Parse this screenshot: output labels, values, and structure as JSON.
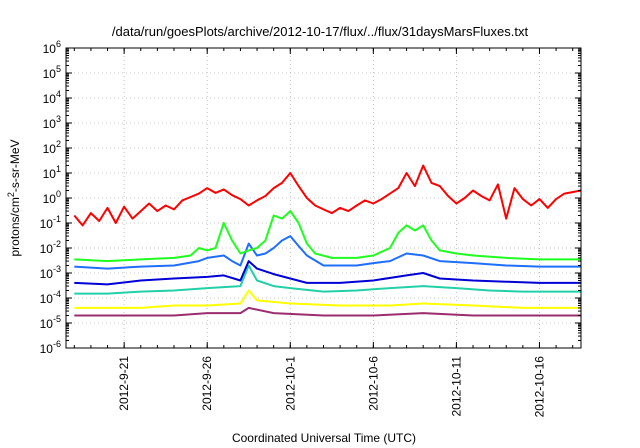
{
  "chart_data": {
    "type": "line",
    "title": "/data/run/goesPlots/archive/2012-10-17/flux/../flux/31daysMarsFluxes.txt",
    "xlabel": "Coordinated Universal Time (UTC)",
    "ylabel_parts": [
      "protons/cm",
      "2",
      "-s-sr-MeV"
    ],
    "x_scale": "time",
    "xlim": [
      "2012-09-17T12:00",
      "2012-10-18T12:00"
    ],
    "y_scale": "log",
    "ylim": [
      1e-06,
      1000000.0
    ],
    "grid": true,
    "x_ticks": [
      {
        "value": "2012-09-21",
        "label": "2012-9-21"
      },
      {
        "value": "2012-09-26",
        "label": "2012-9-26"
      },
      {
        "value": "2012-10-01",
        "label": "2012-10-1"
      },
      {
        "value": "2012-10-06",
        "label": "2012-10-6"
      },
      {
        "value": "2012-10-11",
        "label": "2012-10-11"
      },
      {
        "value": "2012-10-16",
        "label": "2012-10-16"
      }
    ],
    "y_ticks": [
      {
        "value": 1e-06,
        "base": "10",
        "exp": "-6"
      },
      {
        "value": 1e-05,
        "base": "10",
        "exp": "-5"
      },
      {
        "value": 0.0001,
        "base": "10",
        "exp": "-4"
      },
      {
        "value": 0.001,
        "base": "10",
        "exp": "-3"
      },
      {
        "value": 0.01,
        "base": "10",
        "exp": "-2"
      },
      {
        "value": 0.1,
        "base": "10",
        "exp": "-1"
      },
      {
        "value": 1,
        "base": "10",
        "exp": "0"
      },
      {
        "value": 10,
        "base": "10",
        "exp": "1"
      },
      {
        "value": 100,
        "base": "10",
        "exp": "2"
      },
      {
        "value": 1000,
        "base": "10",
        "exp": "3"
      },
      {
        "value": 10000,
        "base": "10",
        "exp": "4"
      },
      {
        "value": 100000,
        "base": "10",
        "exp": "5"
      },
      {
        "value": 1000000,
        "base": "10",
        "exp": "6"
      }
    ],
    "series": [
      {
        "color": "#ff0000",
        "points": [
          [
            "2012-09-18T00:00",
            0.2
          ],
          [
            "2012-09-18T12:00",
            0.08
          ],
          [
            "2012-09-19T00:00",
            0.25
          ],
          [
            "2012-09-19T12:00",
            0.12
          ],
          [
            "2012-09-20T00:00",
            0.4
          ],
          [
            "2012-09-20T12:00",
            0.1
          ],
          [
            "2012-09-21T00:00",
            0.45
          ],
          [
            "2012-09-21T12:00",
            0.15
          ],
          [
            "2012-09-22T00:00",
            0.3
          ],
          [
            "2012-09-22T12:00",
            0.6
          ],
          [
            "2012-09-23T00:00",
            0.3
          ],
          [
            "2012-09-23T12:00",
            0.5
          ],
          [
            "2012-09-24T00:00",
            0.35
          ],
          [
            "2012-09-24T12:00",
            0.8
          ],
          [
            "2012-09-25T00:00",
            1.1
          ],
          [
            "2012-09-25T12:00",
            1.5
          ],
          [
            "2012-09-26T00:00",
            2.5
          ],
          [
            "2012-09-26T12:00",
            1.6
          ],
          [
            "2012-09-27T00:00",
            2.2
          ],
          [
            "2012-09-27T12:00",
            1.3
          ],
          [
            "2012-09-28T00:00",
            0.9
          ],
          [
            "2012-09-28T12:00",
            0.5
          ],
          [
            "2012-09-29T00:00",
            0.8
          ],
          [
            "2012-09-29T12:00",
            1.2
          ],
          [
            "2012-09-30T00:00",
            2.5
          ],
          [
            "2012-09-30T12:00",
            4
          ],
          [
            "2012-10-01T00:00",
            10
          ],
          [
            "2012-10-01T12:00",
            3
          ],
          [
            "2012-10-02T00:00",
            1
          ],
          [
            "2012-10-02T12:00",
            0.5
          ],
          [
            "2012-10-03T00:00",
            0.35
          ],
          [
            "2012-10-03T12:00",
            0.25
          ],
          [
            "2012-10-04T00:00",
            0.4
          ],
          [
            "2012-10-04T12:00",
            0.3
          ],
          [
            "2012-10-05T00:00",
            0.5
          ],
          [
            "2012-10-05T12:00",
            0.8
          ],
          [
            "2012-10-06T00:00",
            0.6
          ],
          [
            "2012-10-06T12:00",
            0.9
          ],
          [
            "2012-10-07T00:00",
            1.5
          ],
          [
            "2012-10-07T12:00",
            2.5
          ],
          [
            "2012-10-08T00:00",
            10
          ],
          [
            "2012-10-08T12:00",
            3
          ],
          [
            "2012-10-09T00:00",
            20
          ],
          [
            "2012-10-09T12:00",
            4
          ],
          [
            "2012-10-10T00:00",
            3
          ],
          [
            "2012-10-10T12:00",
            1.2
          ],
          [
            "2012-10-11T00:00",
            0.6
          ],
          [
            "2012-10-11T12:00",
            1
          ],
          [
            "2012-10-12T00:00",
            2
          ],
          [
            "2012-10-12T12:00",
            1.2
          ],
          [
            "2012-10-13T00:00",
            0.8
          ],
          [
            "2012-10-13T12:00",
            3.5
          ],
          [
            "2012-10-14T00:00",
            0.15
          ],
          [
            "2012-10-14T12:00",
            2.5
          ],
          [
            "2012-10-15T00:00",
            0.9
          ],
          [
            "2012-10-15T12:00",
            0.5
          ],
          [
            "2012-10-16T00:00",
            0.9
          ],
          [
            "2012-10-16T12:00",
            0.4
          ],
          [
            "2012-10-17T00:00",
            0.9
          ],
          [
            "2012-10-17T12:00",
            1.5
          ],
          [
            "2012-10-18T12:00",
            2
          ]
        ]
      },
      {
        "color": "#1fff1f",
        "points": [
          [
            "2012-09-18T00:00",
            0.0035
          ],
          [
            "2012-09-20T00:00",
            0.003
          ],
          [
            "2012-09-22T00:00",
            0.0035
          ],
          [
            "2012-09-24T00:00",
            0.004
          ],
          [
            "2012-09-25T00:00",
            0.005
          ],
          [
            "2012-09-25T12:00",
            0.01
          ],
          [
            "2012-09-26T00:00",
            0.008
          ],
          [
            "2012-09-26T12:00",
            0.01
          ],
          [
            "2012-09-27T00:00",
            0.1
          ],
          [
            "2012-09-27T12:00",
            0.02
          ],
          [
            "2012-09-28T00:00",
            0.006
          ],
          [
            "2012-09-28T12:00",
            0.008
          ],
          [
            "2012-09-29T00:00",
            0.01
          ],
          [
            "2012-09-29T12:00",
            0.02
          ],
          [
            "2012-09-30T00:00",
            0.2
          ],
          [
            "2012-09-30T12:00",
            0.15
          ],
          [
            "2012-10-01T00:00",
            0.3
          ],
          [
            "2012-10-01T12:00",
            0.1
          ],
          [
            "2012-10-02T00:00",
            0.015
          ],
          [
            "2012-10-02T12:00",
            0.006
          ],
          [
            "2012-10-03T12:00",
            0.004
          ],
          [
            "2012-10-05T00:00",
            0.004
          ],
          [
            "2012-10-06T00:00",
            0.005
          ],
          [
            "2012-10-07T00:00",
            0.01
          ],
          [
            "2012-10-07T12:00",
            0.04
          ],
          [
            "2012-10-08T00:00",
            0.08
          ],
          [
            "2012-10-08T12:00",
            0.05
          ],
          [
            "2012-10-09T00:00",
            0.08
          ],
          [
            "2012-10-09T12:00",
            0.02
          ],
          [
            "2012-10-10T00:00",
            0.008
          ],
          [
            "2012-10-11T00:00",
            0.006
          ],
          [
            "2012-10-12T00:00",
            0.005
          ],
          [
            "2012-10-14T00:00",
            0.004
          ],
          [
            "2012-10-16T00:00",
            0.0035
          ],
          [
            "2012-10-18T12:00",
            0.0035
          ]
        ]
      },
      {
        "color": "#1e6fff",
        "points": [
          [
            "2012-09-18T00:00",
            0.0018
          ],
          [
            "2012-09-20T00:00",
            0.0015
          ],
          [
            "2012-09-22T00:00",
            0.0018
          ],
          [
            "2012-09-24T00:00",
            0.002
          ],
          [
            "2012-09-25T12:00",
            0.003
          ],
          [
            "2012-09-26T00:00",
            0.004
          ],
          [
            "2012-09-27T00:00",
            0.005
          ],
          [
            "2012-09-27T12:00",
            0.003
          ],
          [
            "2012-09-28T00:00",
            0.002
          ],
          [
            "2012-09-28T12:00",
            0.015
          ],
          [
            "2012-09-29T00:00",
            0.005
          ],
          [
            "2012-09-29T12:00",
            0.006
          ],
          [
            "2012-09-30T00:00",
            0.01
          ],
          [
            "2012-09-30T12:00",
            0.02
          ],
          [
            "2012-10-01T00:00",
            0.03
          ],
          [
            "2012-10-01T12:00",
            0.012
          ],
          [
            "2012-10-02T00:00",
            0.005
          ],
          [
            "2012-10-03T00:00",
            0.002
          ],
          [
            "2012-10-05T00:00",
            0.002
          ],
          [
            "2012-10-06T00:00",
            0.0025
          ],
          [
            "2012-10-07T00:00",
            0.003
          ],
          [
            "2012-10-08T00:00",
            0.006
          ],
          [
            "2012-10-09T00:00",
            0.005
          ],
          [
            "2012-10-10T00:00",
            0.003
          ],
          [
            "2012-10-12T00:00",
            0.0025
          ],
          [
            "2012-10-14T00:00",
            0.002
          ],
          [
            "2012-10-16T00:00",
            0.0018
          ],
          [
            "2012-10-18T12:00",
            0.0018
          ]
        ]
      },
      {
        "color": "#0000d6",
        "points": [
          [
            "2012-09-18T00:00",
            0.0004
          ],
          [
            "2012-09-20T00:00",
            0.00035
          ],
          [
            "2012-09-22T00:00",
            0.0005
          ],
          [
            "2012-09-24T00:00",
            0.0006
          ],
          [
            "2012-09-26T00:00",
            0.0007
          ],
          [
            "2012-09-27T00:00",
            0.0008
          ],
          [
            "2012-09-28T00:00",
            0.0005
          ],
          [
            "2012-09-28T12:00",
            0.003
          ],
          [
            "2012-09-29T00:00",
            0.0015
          ],
          [
            "2012-09-30T00:00",
            0.0009
          ],
          [
            "2012-10-01T00:00",
            0.0006
          ],
          [
            "2012-10-02T00:00",
            0.0004
          ],
          [
            "2012-10-04T00:00",
            0.0004
          ],
          [
            "2012-10-06T00:00",
            0.0005
          ],
          [
            "2012-10-08T00:00",
            0.0008
          ],
          [
            "2012-10-09T00:00",
            0.001
          ],
          [
            "2012-10-10T00:00",
            0.0006
          ],
          [
            "2012-10-12T00:00",
            0.0005
          ],
          [
            "2012-10-14T00:00",
            0.00045
          ],
          [
            "2012-10-16T00:00",
            0.0004
          ],
          [
            "2012-10-18T12:00",
            0.0004
          ]
        ]
      },
      {
        "color": "#22d0a8",
        "points": [
          [
            "2012-09-18T00:00",
            0.00015
          ],
          [
            "2012-09-20T00:00",
            0.00015
          ],
          [
            "2012-09-22T00:00",
            0.00018
          ],
          [
            "2012-09-24T00:00",
            0.0002
          ],
          [
            "2012-09-26T00:00",
            0.00025
          ],
          [
            "2012-09-28T00:00",
            0.0003
          ],
          [
            "2012-09-28T12:00",
            0.002
          ],
          [
            "2012-09-29T00:00",
            0.0005
          ],
          [
            "2012-09-30T00:00",
            0.0003
          ],
          [
            "2012-10-01T00:00",
            0.00025
          ],
          [
            "2012-10-03T00:00",
            0.00018
          ],
          [
            "2012-10-05T00:00",
            0.0002
          ],
          [
            "2012-10-07T00:00",
            0.00025
          ],
          [
            "2012-10-09T00:00",
            0.0003
          ],
          [
            "2012-10-11T00:00",
            0.00025
          ],
          [
            "2012-10-13T00:00",
            0.0002
          ],
          [
            "2012-10-15T00:00",
            0.00018
          ],
          [
            "2012-10-18T12:00",
            0.00018
          ]
        ]
      },
      {
        "color": "#ffff00",
        "points": [
          [
            "2012-09-18T00:00",
            4e-05
          ],
          [
            "2012-09-20T00:00",
            4e-05
          ],
          [
            "2012-09-22T00:00",
            4e-05
          ],
          [
            "2012-09-24T00:00",
            5e-05
          ],
          [
            "2012-09-26T00:00",
            5e-05
          ],
          [
            "2012-09-28T00:00",
            6e-05
          ],
          [
            "2012-09-28T12:00",
            0.0002
          ],
          [
            "2012-09-29T00:00",
            8e-05
          ],
          [
            "2012-10-01T00:00",
            6e-05
          ],
          [
            "2012-10-04T00:00",
            5e-05
          ],
          [
            "2012-10-07T00:00",
            5e-05
          ],
          [
            "2012-10-09T00:00",
            6e-05
          ],
          [
            "2012-10-12T00:00",
            5e-05
          ],
          [
            "2012-10-15T00:00",
            4e-05
          ],
          [
            "2012-10-18T12:00",
            4e-05
          ]
        ]
      },
      {
        "color": "#9b2d6e",
        "points": [
          [
            "2012-09-18T00:00",
            2e-05
          ],
          [
            "2012-09-20T00:00",
            2e-05
          ],
          [
            "2012-09-22T00:00",
            2e-05
          ],
          [
            "2012-09-24T00:00",
            2e-05
          ],
          [
            "2012-09-26T00:00",
            2.5e-05
          ],
          [
            "2012-09-28T00:00",
            2.5e-05
          ],
          [
            "2012-09-28T12:00",
            4e-05
          ],
          [
            "2012-09-30T00:00",
            2.5e-05
          ],
          [
            "2012-10-03T00:00",
            2e-05
          ],
          [
            "2012-10-06T00:00",
            2e-05
          ],
          [
            "2012-10-09T00:00",
            2.5e-05
          ],
          [
            "2012-10-12T00:00",
            2e-05
          ],
          [
            "2012-10-15T00:00",
            2e-05
          ],
          [
            "2012-10-18T12:00",
            2e-05
          ]
        ]
      }
    ]
  }
}
